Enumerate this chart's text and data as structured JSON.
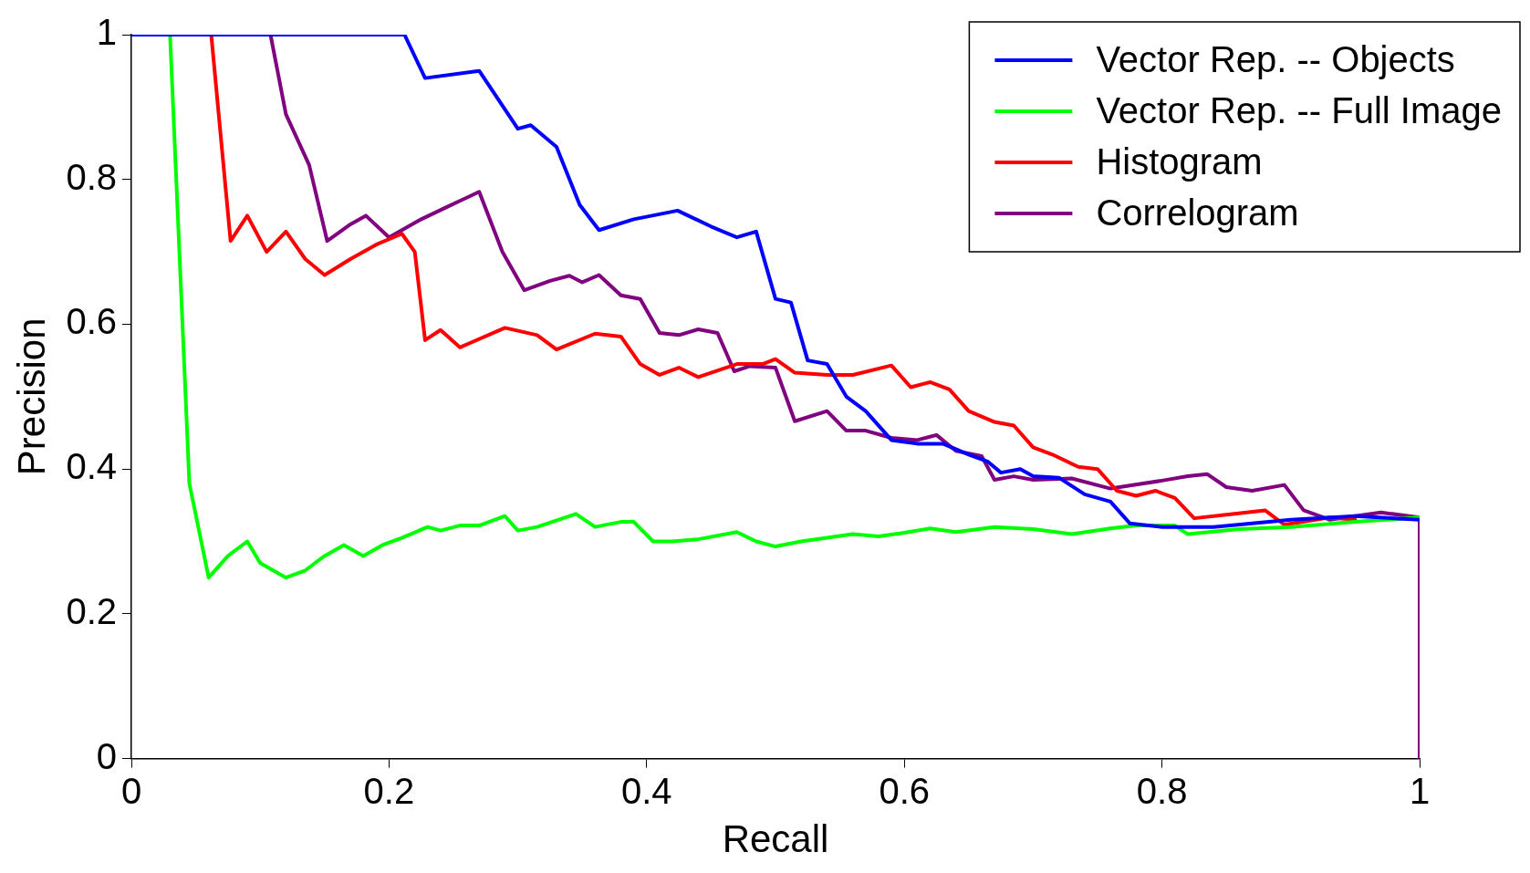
{
  "chart_data": {
    "type": "line",
    "xlabel": "Recall",
    "ylabel": "Precision",
    "xlim": [
      0,
      1
    ],
    "ylim": [
      0,
      1
    ],
    "xticks": [
      0,
      0.2,
      0.4,
      0.6,
      0.8,
      1
    ],
    "yticks": [
      0,
      0.2,
      0.4,
      0.6,
      0.8,
      1
    ],
    "grid": false,
    "legend": "top right",
    "line_style": "solid",
    "marker": "none",
    "series": [
      {
        "name": "Vector Rep. -- Objects",
        "color": "#0000ff",
        "x": [
          0,
          0.212,
          0.228,
          0.27,
          0.285,
          0.3,
          0.31,
          0.33,
          0.348,
          0.363,
          0.39,
          0.424,
          0.45,
          0.47,
          0.485,
          0.5,
          0.512,
          0.525,
          0.54,
          0.555,
          0.57,
          0.59,
          0.61,
          0.63,
          0.65,
          0.665,
          0.675,
          0.69,
          0.7,
          0.72,
          0.74,
          0.76,
          0.775,
          0.8,
          0.84,
          0.87,
          0.9,
          0.95,
          1
        ],
        "values": [
          1,
          1,
          0.94,
          0.95,
          0.91,
          0.87,
          0.875,
          0.845,
          0.765,
          0.73,
          0.745,
          0.757,
          0.735,
          0.72,
          0.728,
          0.635,
          0.63,
          0.55,
          0.545,
          0.5,
          0.48,
          0.44,
          0.435,
          0.435,
          0.42,
          0.41,
          0.395,
          0.4,
          0.39,
          0.388,
          0.365,
          0.355,
          0.325,
          0.32,
          0.32,
          0.325,
          0.33,
          0.335,
          0.33
        ]
      },
      {
        "name": "Vector Rep. -- Full Image",
        "color": "#00ff00",
        "x": [
          0.03,
          0.045,
          0.06,
          0.075,
          0.09,
          0.1,
          0.12,
          0.135,
          0.15,
          0.165,
          0.18,
          0.195,
          0.21,
          0.23,
          0.24,
          0.255,
          0.27,
          0.29,
          0.3,
          0.315,
          0.345,
          0.36,
          0.38,
          0.39,
          0.405,
          0.42,
          0.44,
          0.47,
          0.485,
          0.5,
          0.52,
          0.54,
          0.56,
          0.58,
          0.6,
          0.62,
          0.64,
          0.67,
          0.7,
          0.73,
          0.76,
          0.78,
          0.81,
          0.82,
          0.86,
          0.9,
          0.95,
          1
        ],
        "values": [
          1,
          0.38,
          0.25,
          0.28,
          0.3,
          0.27,
          0.25,
          0.26,
          0.28,
          0.295,
          0.28,
          0.295,
          0.305,
          0.32,
          0.315,
          0.322,
          0.322,
          0.335,
          0.315,
          0.32,
          0.338,
          0.32,
          0.327,
          0.327,
          0.3,
          0.3,
          0.303,
          0.313,
          0.3,
          0.293,
          0.3,
          0.305,
          0.31,
          0.307,
          0.312,
          0.318,
          0.313,
          0.32,
          0.317,
          0.31,
          0.318,
          0.322,
          0.322,
          0.31,
          0.317,
          0.32,
          0.327,
          0.333
        ]
      },
      {
        "name": "Histogram",
        "color": "#ff0000",
        "x": [
          0.062,
          0.077,
          0.09,
          0.105,
          0.12,
          0.135,
          0.15,
          0.17,
          0.19,
          0.21,
          0.22,
          0.228,
          0.24,
          0.255,
          0.29,
          0.315,
          0.33,
          0.36,
          0.38,
          0.395,
          0.41,
          0.425,
          0.44,
          0.47,
          0.49,
          0.5,
          0.515,
          0.54,
          0.56,
          0.59,
          0.605,
          0.62,
          0.635,
          0.65,
          0.67,
          0.685,
          0.7,
          0.715,
          0.735,
          0.75,
          0.765,
          0.78,
          0.795,
          0.81,
          0.825,
          0.85,
          0.88,
          0.895,
          0.93,
          0.95
        ],
        "values": [
          1,
          0.715,
          0.75,
          0.7,
          0.728,
          0.69,
          0.668,
          0.69,
          0.71,
          0.725,
          0.7,
          0.578,
          0.592,
          0.568,
          0.595,
          0.585,
          0.565,
          0.587,
          0.583,
          0.545,
          0.53,
          0.54,
          0.527,
          0.545,
          0.545,
          0.552,
          0.533,
          0.53,
          0.53,
          0.543,
          0.513,
          0.52,
          0.51,
          0.48,
          0.465,
          0.46,
          0.43,
          0.42,
          0.403,
          0.4,
          0.37,
          0.363,
          0.37,
          0.36,
          0.332,
          0.337,
          0.343,
          0.323,
          0.333,
          0.33
        ]
      },
      {
        "name": "Correlogram",
        "color": "#800080",
        "x": [
          0,
          0.108,
          0.12,
          0.138,
          0.152,
          0.17,
          0.182,
          0.2,
          0.225,
          0.245,
          0.27,
          0.288,
          0.305,
          0.325,
          0.34,
          0.35,
          0.363,
          0.38,
          0.395,
          0.41,
          0.425,
          0.44,
          0.455,
          0.468,
          0.48,
          0.5,
          0.515,
          0.54,
          0.555,
          0.57,
          0.59,
          0.61,
          0.625,
          0.64,
          0.66,
          0.67,
          0.685,
          0.7,
          0.73,
          0.76,
          0.8,
          0.82,
          0.835,
          0.85,
          0.87,
          0.895,
          0.91,
          0.93,
          0.97,
          1,
          1
        ],
        "values": [
          1,
          1,
          0.89,
          0.82,
          0.715,
          0.738,
          0.75,
          0.72,
          0.745,
          0.762,
          0.783,
          0.7,
          0.647,
          0.66,
          0.667,
          0.658,
          0.668,
          0.64,
          0.635,
          0.588,
          0.585,
          0.593,
          0.588,
          0.535,
          0.542,
          0.54,
          0.466,
          0.48,
          0.453,
          0.453,
          0.443,
          0.44,
          0.447,
          0.425,
          0.418,
          0.385,
          0.39,
          0.385,
          0.387,
          0.373,
          0.384,
          0.39,
          0.393,
          0.375,
          0.37,
          0.378,
          0.343,
          0.33,
          0.34,
          0.333,
          0
        ]
      }
    ]
  }
}
